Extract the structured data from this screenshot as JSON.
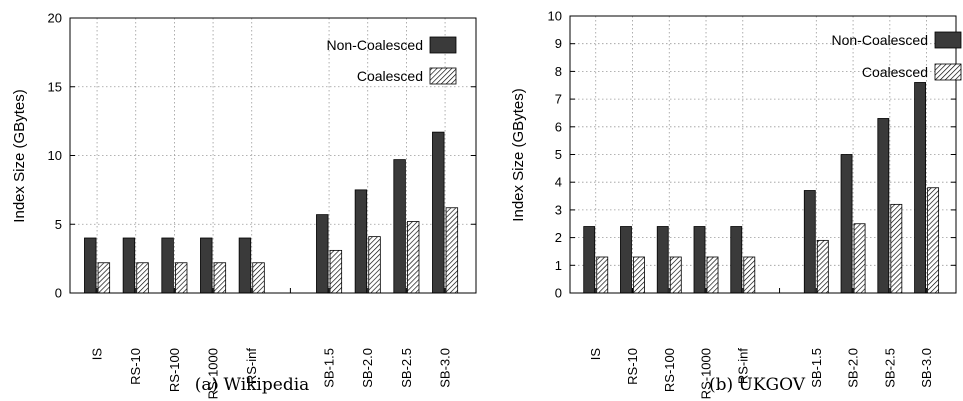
{
  "chart_data": [
    {
      "type": "bar",
      "caption": "(a) Wikipedia",
      "ylabel": "Index Size (GBytes)",
      "ylim": [
        0,
        20
      ],
      "yticks": [
        0,
        5,
        10,
        15,
        20
      ],
      "grid": true,
      "legend_position": "top-right",
      "categories": [
        "IS",
        "RS-10",
        "RS-100",
        "RS-1000",
        "RS-inf",
        "",
        "SB-1.5",
        "SB-2.0",
        "SB-2.5",
        "SB-3.0"
      ],
      "series": [
        {
          "name": "Non-Coalesced",
          "values": [
            4.0,
            4.0,
            4.0,
            4.0,
            4.0,
            0,
            5.7,
            7.5,
            9.7,
            11.7
          ]
        },
        {
          "name": "Coalesced",
          "values": [
            2.2,
            2.2,
            2.2,
            2.2,
            2.2,
            0,
            3.1,
            4.1,
            5.2,
            6.2
          ]
        }
      ]
    },
    {
      "type": "bar",
      "caption": "(b) UKGOV",
      "ylabel": "Index Size (GBytes)",
      "ylim": [
        0,
        10
      ],
      "yticks": [
        0,
        1,
        2,
        3,
        4,
        5,
        6,
        7,
        8,
        9,
        10
      ],
      "grid": true,
      "legend_position": "top-right",
      "categories": [
        "IS",
        "RS-10",
        "RS-100",
        "RS-1000",
        "RS-inf",
        "",
        "SB-1.5",
        "SB-2.0",
        "SB-2.5",
        "SB-3.0"
      ],
      "series": [
        {
          "name": "Non-Coalesced",
          "values": [
            2.4,
            2.4,
            2.4,
            2.4,
            2.4,
            0,
            3.7,
            5.0,
            6.3,
            7.6
          ]
        },
        {
          "name": "Coalesced",
          "values": [
            1.3,
            1.3,
            1.3,
            1.3,
            1.3,
            0,
            1.9,
            2.5,
            3.2,
            3.8
          ]
        }
      ]
    }
  ],
  "colors": {
    "non_coalesced": "#3a3a3a",
    "axis": "#000000",
    "grid": "#9a9a9a"
  }
}
